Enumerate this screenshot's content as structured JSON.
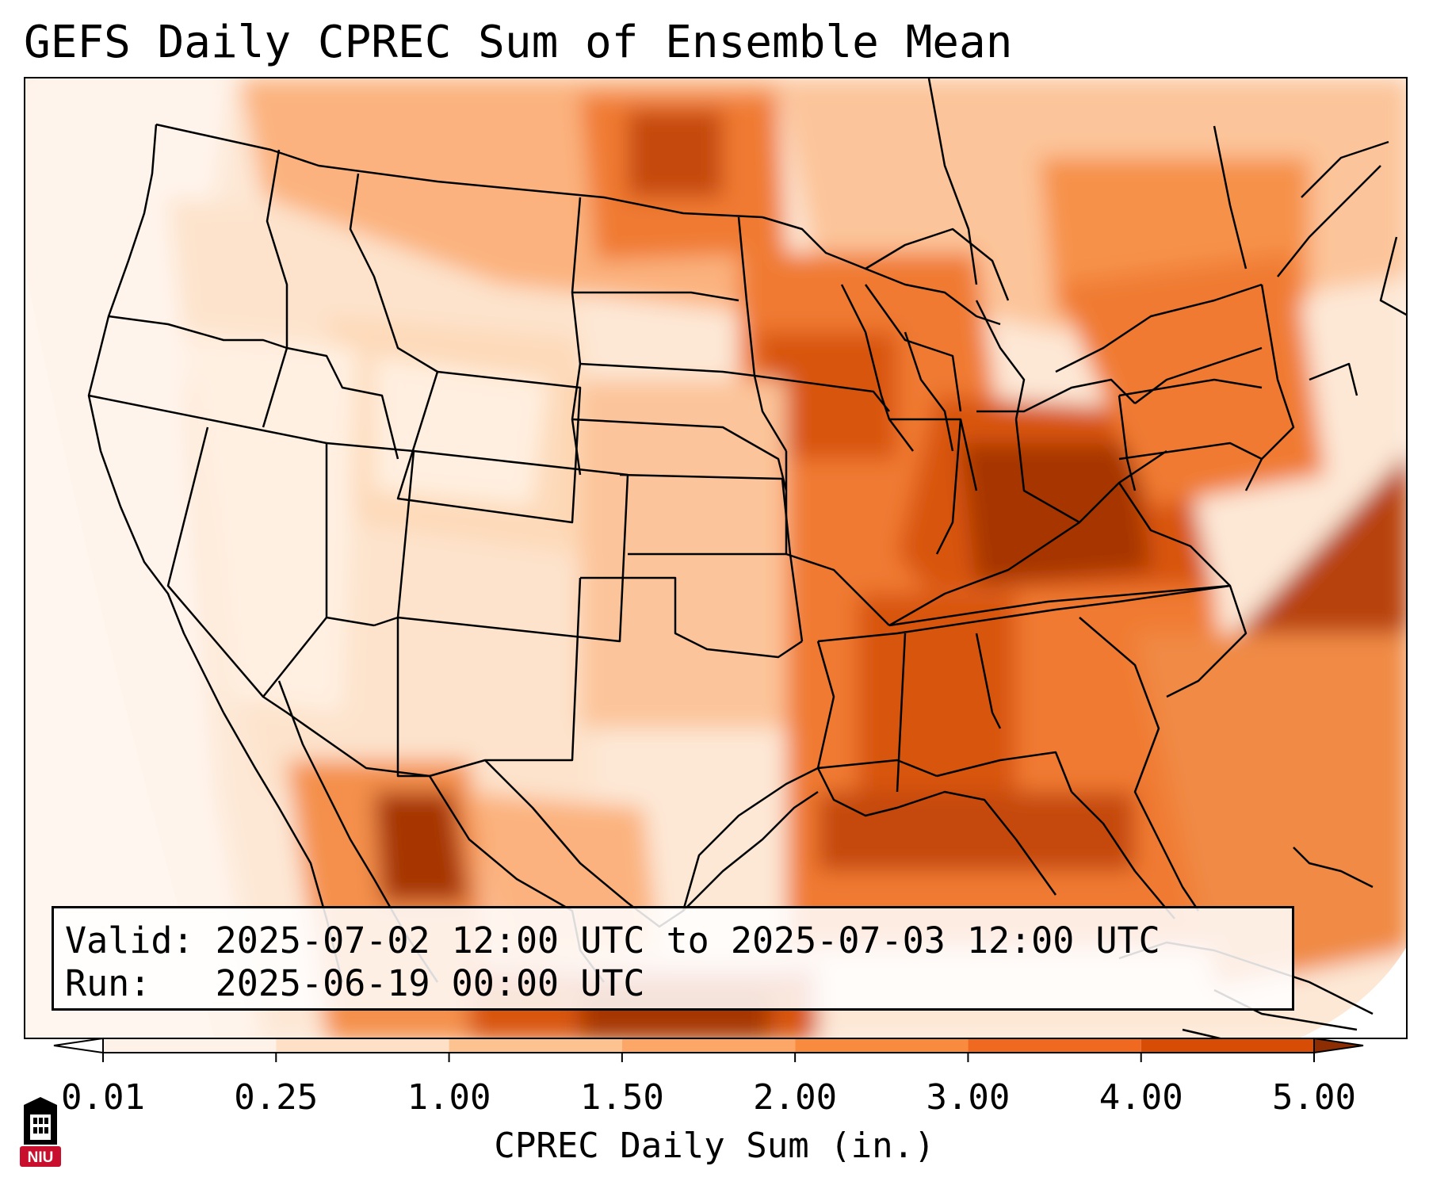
{
  "title": "GEFS Daily CPREC Sum of Ensemble Mean",
  "info": {
    "valid_label": "Valid:",
    "valid_value": "2025-07-02 12:00 UTC to 2025-07-03 12:00 UTC",
    "run_label": "Run:",
    "run_value": "2025-06-19 00:00 UTC"
  },
  "colorbar": {
    "label": "CPREC Daily Sum (in.)",
    "ticks": [
      "0.01",
      "0.25",
      "1.00",
      "1.50",
      "2.00",
      "3.00",
      "4.00",
      "5.00"
    ],
    "colors": [
      "#fef2e8",
      "#fde0c5",
      "#fcc28f",
      "#fca668",
      "#f98b3f",
      "#ef6a20",
      "#d84d06",
      "#a63603"
    ],
    "extend_min_color": "#ffffff",
    "extend_max_color": "#8c2d04"
  },
  "logo": {
    "text": "NIU",
    "icon": "niu-tower-icon",
    "color": "#c8102e"
  }
}
